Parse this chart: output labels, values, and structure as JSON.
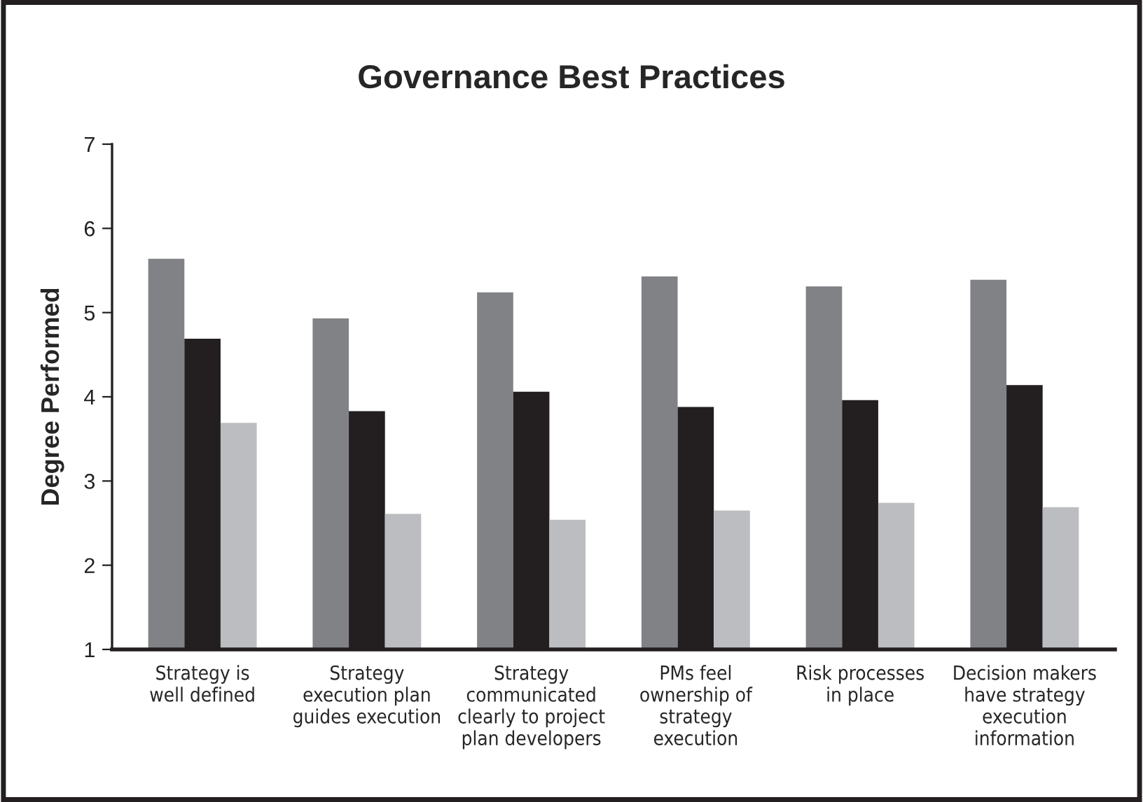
{
  "chart_data": {
    "type": "bar",
    "title": "Governance Best Practices",
    "ylabel": "Degree Performed",
    "categories": [
      "Strategy is\nwell defined",
      "Strategy\nexecution plan\nguides execution",
      "Strategy\ncommunicated\nclearly to project\nplan developers",
      "PMs feel\nownership of\nstrategy\nexecution",
      "Risk processes\nin place",
      "Decision makers\nhave strategy\nexecution\ninformation"
    ],
    "series": [
      {
        "color": "#818286",
        "values": [
          5.64,
          4.93,
          5.24,
          5.43,
          5.31,
          5.39
        ]
      },
      {
        "color": "#231f20",
        "values": [
          4.69,
          3.83,
          4.06,
          3.88,
          3.96,
          4.14
        ]
      },
      {
        "color": "#bcbdc0",
        "values": [
          3.69,
          2.61,
          2.54,
          2.65,
          2.74,
          2.69
        ]
      }
    ],
    "ylim": [
      1,
      7
    ],
    "yticks": [
      1,
      2,
      3,
      4,
      5,
      6,
      7
    ],
    "grid": false
  }
}
